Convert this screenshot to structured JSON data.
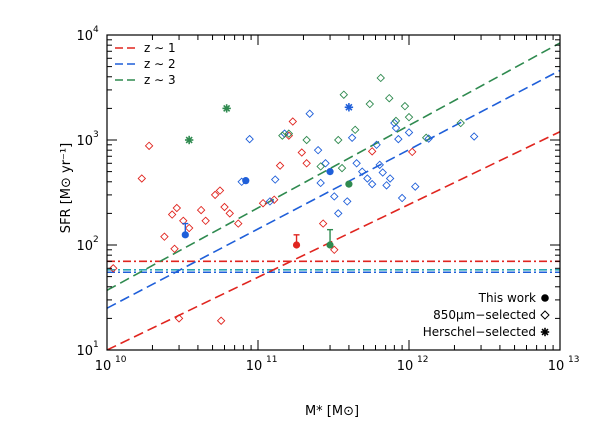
{
  "chart_data": {
    "type": "scatter",
    "xlabel": "M* [M⊙]",
    "ylabel": "SFR [M⊙ yr⁻¹]",
    "x_scale": "log",
    "y_scale": "log",
    "xlim": [
      10000000000.0,
      10000000000000.0
    ],
    "ylim": [
      10,
      10000
    ],
    "x_ticks": [
      {
        "value": 10000000000.0,
        "mant": "10",
        "exp": "10"
      },
      {
        "value": 100000000000.0,
        "mant": "10",
        "exp": "11"
      },
      {
        "value": 1000000000000.0,
        "mant": "10",
        "exp": "12"
      },
      {
        "value": 10000000000000.0,
        "mant": "10",
        "exp": "13"
      }
    ],
    "y_ticks": [
      {
        "value": 10,
        "mant": "10",
        "exp": "1"
      },
      {
        "value": 100,
        "mant": "10",
        "exp": "2"
      },
      {
        "value": 1000,
        "mant": "10",
        "exp": "3"
      },
      {
        "value": 10000,
        "mant": "10",
        "exp": "4"
      }
    ],
    "colors": {
      "z1": "#e0251f",
      "z2": "#1f5fd9",
      "z3": "#2f8a4f",
      "cyan": "#2aa6b3"
    },
    "line_legend": [
      {
        "label": "z ∼ 1",
        "color": "#e0251f"
      },
      {
        "label": "z ∼ 2",
        "color": "#1f5fd9"
      },
      {
        "label": "z ∼ 3",
        "color": "#2f8a4f"
      }
    ],
    "marker_legend": [
      {
        "label": "This work",
        "marker": "filled-circle"
      },
      {
        "label": "850μm−selected",
        "marker": "open-diamond"
      },
      {
        "label": "Herschel−selected",
        "marker": "asterisk"
      }
    ],
    "main_sequence": [
      {
        "z": "1",
        "color": "#e0251f",
        "points": [
          [
            10000000000.0,
            10
          ],
          [
            10000000000000.0,
            1200
          ]
        ]
      },
      {
        "z": "2",
        "color": "#1f5fd9",
        "points": [
          [
            10000000000.0,
            25
          ],
          [
            10000000000000.0,
            4600
          ]
        ]
      },
      {
        "z": "3",
        "color": "#2f8a4f",
        "points": [
          [
            10000000000.0,
            37
          ],
          [
            10000000000000.0,
            8400
          ]
        ]
      }
    ],
    "horizontal_limits": [
      {
        "y": 70,
        "color": "#e0251f",
        "style": "dashdot"
      },
      {
        "y": 58,
        "color": "#2aa6b3",
        "style": "dashdot"
      },
      {
        "y": 55,
        "color": "#1f5fd9",
        "style": "dashdot"
      }
    ],
    "this_work": [
      {
        "x": 83000000000.0,
        "y": 410,
        "color": "#1f5fd9"
      },
      {
        "x": 300000000000.0,
        "y": 500,
        "color": "#1f5fd9"
      },
      {
        "x": 33000000000.0,
        "y": 125,
        "color": "#1f5fd9",
        "err_up": 160
      },
      {
        "x": 180000000000.0,
        "y": 100,
        "color": "#e0251f",
        "err_up": 125
      },
      {
        "x": 400000000000.0,
        "y": 380,
        "color": "#2f8a4f"
      },
      {
        "x": 300000000000.0,
        "y": 100,
        "color": "#2f8a4f",
        "err_up": 140
      }
    ],
    "herschel": [
      {
        "x": 35000000000.0,
        "y": 1000,
        "color": "#2f8a4f"
      },
      {
        "x": 62000000000.0,
        "y": 2000,
        "color": "#2f8a4f"
      },
      {
        "x": 400000000000.0,
        "y": 2050,
        "color": "#1f5fd9"
      }
    ],
    "submm_850": {
      "red": [
        [
          11000000000.0,
          60
        ],
        [
          17000000000.0,
          430
        ],
        [
          19000000000.0,
          880
        ],
        [
          24000000000.0,
          120
        ],
        [
          27000000000.0,
          195
        ],
        [
          29000000000.0,
          225
        ],
        [
          32000000000.0,
          170
        ],
        [
          35000000000.0,
          145
        ],
        [
          30000000000.0,
          20
        ],
        [
          28000000000.0,
          92
        ],
        [
          42000000000.0,
          215
        ],
        [
          45000000000.0,
          170
        ],
        [
          52000000000.0,
          300
        ],
        [
          56000000000.0,
          330
        ],
        [
          60000000000.0,
          230
        ],
        [
          65000000000.0,
          200
        ],
        [
          74000000000.0,
          160
        ],
        [
          57000000000.0,
          19
        ],
        [
          108000000000.0,
          250
        ],
        [
          128000000000.0,
          270
        ],
        [
          140000000000.0,
          570
        ],
        [
          160000000000.0,
          1100
        ],
        [
          170000000000.0,
          1500
        ],
        [
          195000000000.0,
          760
        ],
        [
          210000000000.0,
          600
        ],
        [
          270000000000.0,
          160
        ],
        [
          320000000000.0,
          90
        ],
        [
          570000000000.0,
          780
        ],
        [
          1050000000000.0,
          770
        ]
      ],
      "blue": [
        [
          78000000000.0,
          400
        ],
        [
          88000000000.0,
          1020
        ],
        [
          120000000000.0,
          260
        ],
        [
          130000000000.0,
          420
        ],
        [
          150000000000.0,
          1150
        ],
        [
          220000000000.0,
          1780
        ],
        [
          250000000000.0,
          800
        ],
        [
          280000000000.0,
          600
        ],
        [
          260000000000.0,
          390
        ],
        [
          320000000000.0,
          290
        ],
        [
          340000000000.0,
          200
        ],
        [
          390000000000.0,
          260
        ],
        [
          420000000000.0,
          1050
        ],
        [
          450000000000.0,
          600
        ],
        [
          490000000000.0,
          500
        ],
        [
          530000000000.0,
          430
        ],
        [
          570000000000.0,
          380
        ],
        [
          610000000000.0,
          900
        ],
        [
          640000000000.0,
          580
        ],
        [
          670000000000.0,
          490
        ],
        [
          710000000000.0,
          370
        ],
        [
          750000000000.0,
          430
        ],
        [
          800000000000.0,
          1450
        ],
        [
          820000000000.0,
          1300
        ],
        [
          850000000000.0,
          1020
        ],
        [
          900000000000.0,
          280
        ],
        [
          1000000000000.0,
          1180
        ],
        [
          1100000000000.0,
          360
        ],
        [
          1350000000000.0,
          1030
        ],
        [
          2700000000000.0,
          1080
        ]
      ],
      "green": [
        [
          145000000000.0,
          1100
        ],
        [
          160000000000.0,
          1150
        ],
        [
          210000000000.0,
          1000
        ],
        [
          260000000000.0,
          560
        ],
        [
          340000000000.0,
          1000
        ],
        [
          370000000000.0,
          2700
        ],
        [
          440000000000.0,
          1250
        ],
        [
          550000000000.0,
          2200
        ],
        [
          650000000000.0,
          3900
        ],
        [
          740000000000.0,
          2500
        ],
        [
          820000000000.0,
          1520
        ],
        [
          940000000000.0,
          2100
        ],
        [
          1000000000000.0,
          1650
        ],
        [
          1300000000000.0,
          1050
        ],
        [
          2200000000000.0,
          1450
        ],
        [
          360000000000.0,
          540
        ]
      ]
    }
  }
}
